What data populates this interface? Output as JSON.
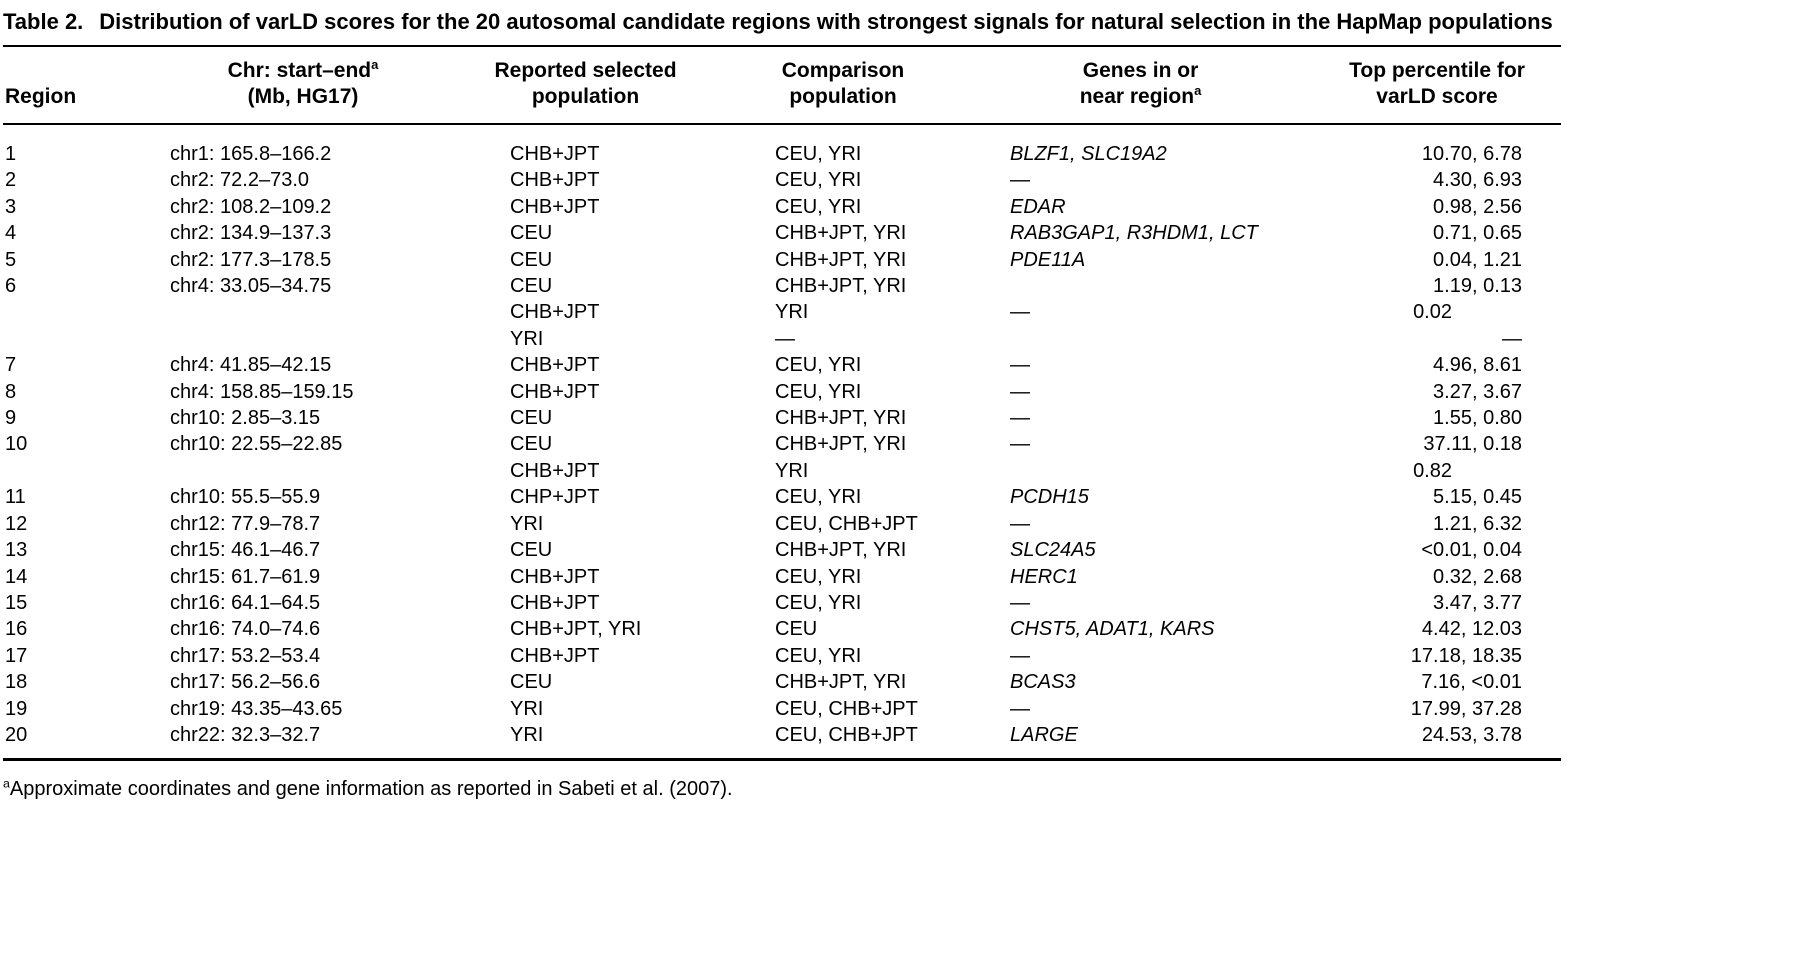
{
  "colors": {
    "text": "#000000",
    "background": "#ffffff"
  },
  "caption": {
    "label": "Table 2.",
    "title": "Distribution of varLD scores for the 20 autosomal candidate regions with strongest signals for natural selection in the HapMap populations"
  },
  "table": {
    "header": {
      "region": "Region",
      "chr_line1": "Chr: start–end",
      "chr_sup": "a",
      "chr_line2": "(Mb, HG17)",
      "selected_line1": "Reported selected",
      "selected_line2": "population",
      "comparison_line1": "Comparison",
      "comparison_line2": "population",
      "genes_line1": "Genes in or",
      "genes_line2": "near region",
      "genes_sup": "a",
      "percentile_line1": "Top percentile for",
      "percentile_line2": "varLD score"
    },
    "rows": [
      {
        "region": "1",
        "chr": "chr1: 165.8–166.2",
        "selected": "CHB+JPT",
        "comparison": "CEU, YRI",
        "genes": "BLZF1, SLC19A2",
        "genes_italic": true,
        "percentile": "10.70, 6.78"
      },
      {
        "region": "2",
        "chr": "chr2: 72.2–73.0",
        "selected": "CHB+JPT",
        "comparison": "CEU, YRI",
        "genes": "—",
        "genes_italic": false,
        "percentile": "4.30, 6.93"
      },
      {
        "region": "3",
        "chr": "chr2: 108.2–109.2",
        "selected": "CHB+JPT",
        "comparison": "CEU, YRI",
        "genes": "EDAR",
        "genes_italic": true,
        "percentile": "0.98, 2.56"
      },
      {
        "region": "4",
        "chr": "chr2: 134.9–137.3",
        "selected": "CEU",
        "comparison": "CHB+JPT, YRI",
        "genes": "RAB3GAP1, R3HDM1, LCT",
        "genes_italic": true,
        "percentile": "0.71, 0.65"
      },
      {
        "region": "5",
        "chr": "chr2: 177.3–178.5",
        "selected": "CEU",
        "comparison": "CHB+JPT, YRI",
        "genes": "PDE11A",
        "genes_italic": true,
        "percentile": "0.04, 1.21"
      },
      {
        "region": "6",
        "chr": "chr4: 33.05–34.75",
        "selected": "CEU",
        "comparison": "CHB+JPT, YRI",
        "genes": "",
        "genes_italic": false,
        "percentile": "1.19, 0.13"
      },
      {
        "region": "",
        "chr": "",
        "selected": "CHB+JPT",
        "comparison": "YRI",
        "genes": "—",
        "genes_italic": false,
        "percentile": "0.02"
      },
      {
        "region": "",
        "chr": "",
        "selected": "YRI",
        "comparison": "—",
        "genes": "",
        "genes_italic": false,
        "percentile": "—"
      },
      {
        "region": "7",
        "chr": "chr4: 41.85–42.15",
        "selected": "CHB+JPT",
        "comparison": "CEU, YRI",
        "genes": "—",
        "genes_italic": false,
        "percentile": "4.96, 8.61"
      },
      {
        "region": "8",
        "chr": "chr4: 158.85–159.15",
        "selected": "CHB+JPT",
        "comparison": "CEU, YRI",
        "genes": "—",
        "genes_italic": false,
        "percentile": "3.27, 3.67"
      },
      {
        "region": "9",
        "chr": "chr10: 2.85–3.15",
        "selected": "CEU",
        "comparison": "CHB+JPT, YRI",
        "genes": "—",
        "genes_italic": false,
        "percentile": "1.55, 0.80"
      },
      {
        "region": "10",
        "chr": "chr10: 22.55–22.85",
        "selected": "CEU",
        "comparison": "CHB+JPT, YRI",
        "genes": "—",
        "genes_italic": false,
        "percentile": "37.11, 0.18"
      },
      {
        "region": "",
        "chr": "",
        "selected": "CHB+JPT",
        "comparison": "YRI",
        "genes": "",
        "genes_italic": false,
        "percentile": "0.82"
      },
      {
        "region": "11",
        "chr": "chr10: 55.5–55.9",
        "selected": "CHP+JPT",
        "comparison": "CEU, YRI",
        "genes": "PCDH15",
        "genes_italic": true,
        "percentile": "5.15, 0.45"
      },
      {
        "region": "12",
        "chr": "chr12: 77.9–78.7",
        "selected": "YRI",
        "comparison": "CEU, CHB+JPT",
        "genes": "—",
        "genes_italic": false,
        "percentile": "1.21, 6.32"
      },
      {
        "region": "13",
        "chr": "chr15: 46.1–46.7",
        "selected": "CEU",
        "comparison": "CHB+JPT, YRI",
        "genes": "SLC24A5",
        "genes_italic": true,
        "percentile": "<0.01, 0.04"
      },
      {
        "region": "14",
        "chr": "chr15: 61.7–61.9",
        "selected": "CHB+JPT",
        "comparison": "CEU, YRI",
        "genes": "HERC1",
        "genes_italic": true,
        "percentile": "0.32, 2.68"
      },
      {
        "region": "15",
        "chr": "chr16: 64.1–64.5",
        "selected": "CHB+JPT",
        "comparison": "CEU, YRI",
        "genes": "—",
        "genes_italic": false,
        "percentile": "3.47, 3.77"
      },
      {
        "region": "16",
        "chr": "chr16: 74.0–74.6",
        "selected": "CHB+JPT, YRI",
        "comparison": "CEU",
        "genes": "CHST5, ADAT1, KARS",
        "genes_italic": true,
        "percentile": "4.42, 12.03"
      },
      {
        "region": "17",
        "chr": "chr17: 53.2–53.4",
        "selected": "CHB+JPT",
        "comparison": "CEU, YRI",
        "genes": "—",
        "genes_italic": false,
        "percentile": "17.18, 18.35"
      },
      {
        "region": "18",
        "chr": "chr17: 56.2–56.6",
        "selected": "CEU",
        "comparison": "CHB+JPT, YRI",
        "genes": "BCAS3",
        "genes_italic": true,
        "percentile": "7.16, <0.01"
      },
      {
        "region": "19",
        "chr": "chr19: 43.35–43.65",
        "selected": "YRI",
        "comparison": "CEU, CHB+JPT",
        "genes": "—",
        "genes_italic": false,
        "percentile": "17.99, 37.28"
      },
      {
        "region": "20",
        "chr": "chr22: 32.3–32.7",
        "selected": "YRI",
        "comparison": "CEU, CHB+JPT",
        "genes": "LARGE",
        "genes_italic": true,
        "percentile": "24.53, 3.78"
      }
    ]
  },
  "footnote": {
    "marker": "a",
    "text": "Approximate coordinates and gene information as reported in Sabeti et al. (2007)."
  }
}
